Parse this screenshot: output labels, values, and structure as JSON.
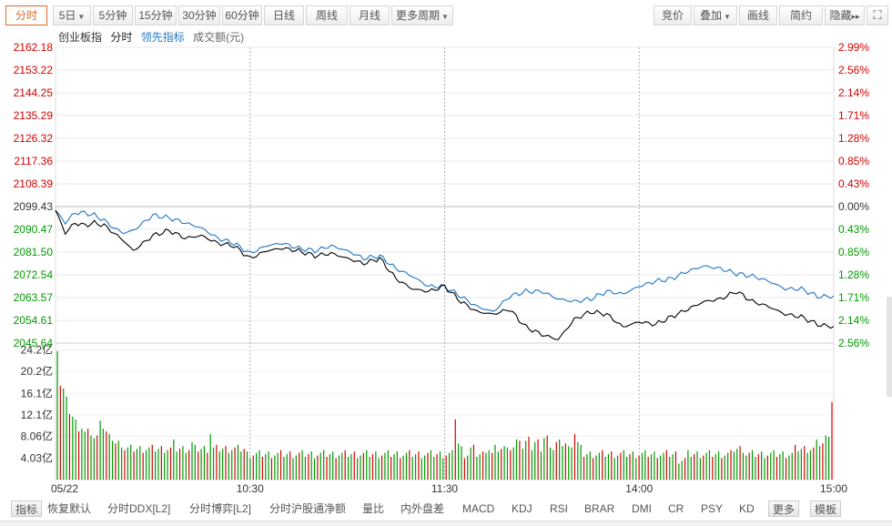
{
  "toolbar": {
    "left": [
      {
        "label": "分时",
        "active": true
      },
      {
        "label": "5日",
        "dropdown": true
      },
      {
        "label": "5分钟"
      },
      {
        "label": "15分钟"
      },
      {
        "label": "30分钟"
      },
      {
        "label": "60分钟"
      },
      {
        "label": "日线"
      },
      {
        "label": "周线"
      },
      {
        "label": "月线"
      },
      {
        "label": "更多周期",
        "dropdown": true
      }
    ],
    "right": [
      {
        "label": "竞价"
      },
      {
        "label": "叠加",
        "dropdown": true
      },
      {
        "label": "画线"
      },
      {
        "label": "简约"
      },
      {
        "label": "隐藏",
        "arrow": "▸▸"
      }
    ],
    "fullscreen_icon": "expand-icon"
  },
  "legend": {
    "index_name": "创业板指",
    "mode": "分时",
    "lead": "领先指标",
    "volume": "成交额(元)"
  },
  "colors": {
    "up": "#d40000",
    "down": "#009900",
    "price_line": "#000000",
    "lead_line": "#1f77c4",
    "grid": "#e8e8e8",
    "accent": "#e06a2a"
  },
  "chart_data": {
    "type": "line",
    "base_price": 2099.43,
    "price_axis": [
      "2162.18",
      "2153.22",
      "2144.25",
      "2135.29",
      "2126.32",
      "2117.36",
      "2108.39",
      "2099.43",
      "2090.47",
      "2081.50",
      "2072.54",
      "2063.57",
      "2054.61",
      "2045.64"
    ],
    "pct_axis": [
      "2.99%",
      "2.56%",
      "2.14%",
      "1.71%",
      "1.28%",
      "0.85%",
      "0.43%",
      "0.00%",
      "0.43%",
      "0.85%",
      "1.28%",
      "1.71%",
      "2.14%",
      "2.56%"
    ],
    "ylim": [
      2045.64,
      2162.18
    ],
    "volume_axis": [
      "24.2亿",
      "20.2亿",
      "16.1亿",
      "12.1亿",
      "8.06亿",
      "4.03亿"
    ],
    "volume_ylim": [
      0,
      25.5
    ],
    "time_labels": [
      "05/22",
      "10:30",
      "11:30",
      "14:00",
      "15:00"
    ],
    "series": [
      {
        "key": "price",
        "t": [
          0,
          3,
          6,
          9,
          12,
          15,
          18,
          21,
          24,
          27,
          30,
          35,
          40,
          45,
          50,
          55,
          60,
          65,
          70,
          75,
          80,
          85,
          90,
          95,
          100,
          105,
          110,
          115,
          120,
          125,
          130,
          135,
          140,
          145,
          150,
          155,
          160,
          165,
          170,
          175,
          180,
          185,
          190,
          195,
          200,
          205,
          210,
          215,
          220,
          225,
          230,
          235,
          240
        ],
        "values": [
          2098,
          2089,
          2093,
          2092,
          2093,
          2092,
          2089,
          2086,
          2082,
          2085,
          2088,
          2090,
          2087,
          2088,
          2085,
          2084,
          2079,
          2082,
          2083,
          2082,
          2080,
          2081,
          2079,
          2077,
          2079,
          2071,
          2067,
          2066,
          2068,
          2062,
          2058,
          2057,
          2059,
          2052,
          2049,
          2047,
          2055,
          2058,
          2057,
          2052,
          2054,
          2053,
          2056,
          2059,
          2062,
          2063,
          2066,
          2062,
          2060,
          2057,
          2056,
          2053,
          2052
        ]
      },
      {
        "key": "lead",
        "t": [
          0,
          3,
          6,
          9,
          12,
          15,
          18,
          21,
          24,
          27,
          30,
          35,
          40,
          45,
          50,
          55,
          60,
          65,
          70,
          75,
          80,
          85,
          90,
          95,
          100,
          105,
          110,
          115,
          120,
          125,
          130,
          135,
          140,
          145,
          150,
          155,
          160,
          165,
          170,
          175,
          180,
          185,
          190,
          195,
          200,
          205,
          210,
          215,
          220,
          225,
          230,
          235,
          240
        ],
        "values": [
          2098,
          2093,
          2097,
          2097,
          2096,
          2094,
          2091,
          2089,
          2090,
          2093,
          2096,
          2095,
          2093,
          2091,
          2087,
          2085,
          2081,
          2084,
          2085,
          2083,
          2082,
          2084,
          2082,
          2079,
          2080,
          2075,
          2072,
          2068,
          2068,
          2064,
          2060,
          2058,
          2064,
          2066,
          2066,
          2063,
          2062,
          2063,
          2066,
          2065,
          2068,
          2070,
          2071,
          2074,
          2076,
          2075,
          2073,
          2072,
          2070,
          2067,
          2067,
          2064,
          2064
        ]
      }
    ],
    "volume_pattern": [
      24,
      17,
      16,
      14,
      12,
      11,
      10,
      9,
      9,
      8,
      8,
      8,
      7,
      7,
      11,
      9,
      8,
      7,
      7,
      6,
      6,
      6,
      5,
      5,
      5,
      5,
      5,
      5,
      5,
      5,
      5,
      5,
      5,
      5,
      5,
      5,
      5,
      5,
      6,
      5,
      5,
      5,
      5,
      5,
      6,
      5,
      5,
      5,
      5,
      5,
      8,
      5,
      5,
      5,
      5,
      5,
      5,
      5,
      5,
      5,
      5,
      5,
      4,
      4,
      4,
      4,
      4,
      4,
      4,
      4,
      4,
      4,
      4,
      4,
      4,
      4,
      4,
      4,
      4,
      4,
      4,
      4,
      4,
      4,
      4,
      4,
      4,
      4,
      4,
      4,
      4,
      4,
      4,
      4,
      4,
      4,
      4,
      4,
      4,
      4,
      4,
      4,
      4,
      4,
      4,
      4,
      4,
      4,
      4,
      4,
      4,
      4,
      4,
      4,
      4,
      4,
      4,
      4,
      4,
      4,
      4,
      4,
      4,
      4,
      4,
      4,
      4,
      4,
      4,
      4,
      11,
      6,
      5,
      4,
      4,
      5,
      5,
      4,
      4,
      4,
      5,
      5,
      4,
      5,
      5,
      5,
      5,
      6,
      5,
      5,
      6,
      7,
      5,
      6,
      8,
      5,
      6,
      6,
      5,
      7,
      7,
      6,
      5,
      6,
      6,
      6,
      6,
      5,
      6,
      8,
      6,
      5,
      4,
      4,
      4,
      4,
      4,
      4,
      4,
      4,
      4,
      4,
      4,
      4,
      4,
      4,
      4,
      4,
      4,
      4,
      4,
      4,
      4,
      4,
      4,
      4,
      4,
      4,
      4,
      4,
      4,
      4,
      4,
      3,
      3,
      3,
      4,
      4,
      4,
      4,
      4,
      4,
      4,
      4,
      4,
      4,
      4,
      4,
      4,
      4,
      4,
      5,
      5,
      5,
      5,
      4,
      4,
      4,
      4,
      4,
      4,
      4,
      4,
      4,
      4,
      4,
      4,
      4,
      4,
      4,
      4,
      5,
      5,
      5,
      5,
      5,
      5,
      5,
      6,
      6,
      6,
      7,
      8,
      14
    ]
  },
  "bottom_tabs": [
    "指标",
    "恢复默认",
    "分时DDX[L2]",
    "分时博弈[L2]",
    "分时沪股通净额",
    "量比",
    "内外盘差",
    "MACD",
    "KDJ",
    "RSI",
    "BRAR",
    "DMI",
    "CR",
    "PSY",
    "KD",
    "更多",
    "模板"
  ]
}
